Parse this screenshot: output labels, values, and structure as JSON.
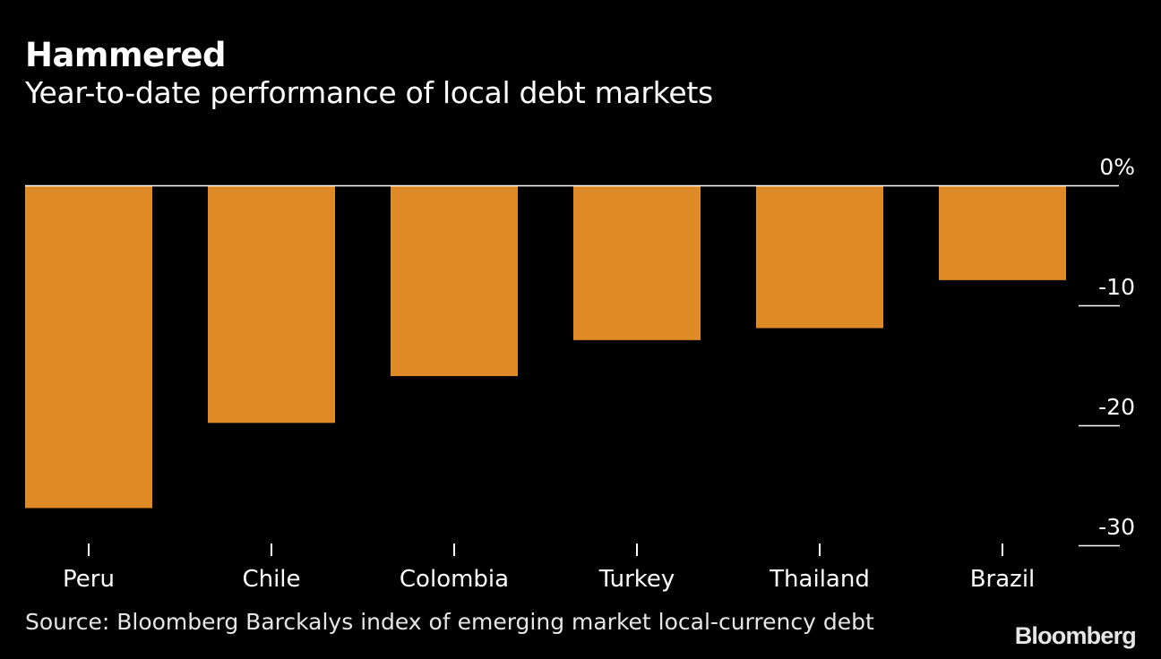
{
  "header": {
    "title": "Hammered",
    "subtitle": "Year-to-date performance of local debt markets"
  },
  "footer": {
    "source": "Source: Bloomberg Barckalys index of emerging market local-currency debt",
    "brand": "Bloomberg"
  },
  "colors": {
    "background": "#000000",
    "bar": "#de8a26",
    "text": "#ffffff",
    "axis": "#ffffff"
  },
  "chart_data": {
    "type": "bar",
    "title": "Hammered",
    "subtitle": "Year-to-date performance of local debt markets",
    "categories": [
      "Peru",
      "Chile",
      "Colombia",
      "Turkey",
      "Thailand",
      "Brazil"
    ],
    "values": [
      -26.9,
      -19.8,
      -15.9,
      -12.9,
      -11.9,
      -7.9
    ],
    "ylim": [
      -30,
      0
    ],
    "yticks": [
      0,
      -10,
      -20,
      -30
    ],
    "ytick_labels": [
      "0%",
      "-10",
      "-20",
      "-30"
    ],
    "xlabel": "",
    "ylabel": "",
    "grid": false,
    "legend": "none",
    "axis_side": "right"
  }
}
